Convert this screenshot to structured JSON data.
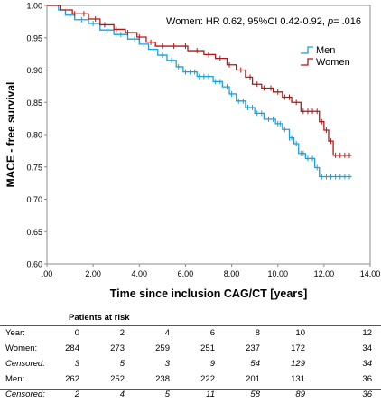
{
  "chart_data": {
    "type": "line",
    "title": "",
    "annotation_parts": [
      "Women: HR 0.62, 95%CI 0.42-0.92, ",
      "p",
      "= .016"
    ],
    "xlabel": "Time since inclusion CAG/CT [years]",
    "ylabel": "MACE - free  survival",
    "xlim": [
      0,
      14
    ],
    "ylim": [
      0.6,
      1.0
    ],
    "x_ticks": [
      ".00",
      "2.00",
      "4.00",
      "6.00",
      "8.00",
      "10.00",
      "12.00",
      "14.00"
    ],
    "y_ticks": [
      "0.60",
      "0.65",
      "0.70",
      "0.75",
      "0.80",
      "0.85",
      "0.90",
      "0.95",
      "1.00"
    ],
    "legend_position": "top-right",
    "colors": {
      "men": "#1f9fd9",
      "women": "#b01818"
    },
    "series": [
      {
        "name": "Men",
        "key": "men",
        "steps": [
          [
            0,
            1.0
          ],
          [
            0.5,
            0.993
          ],
          [
            0.8,
            0.985
          ],
          [
            1.2,
            0.978
          ],
          [
            1.8,
            0.972
          ],
          [
            2.3,
            0.962
          ],
          [
            2.9,
            0.955
          ],
          [
            3.5,
            0.948
          ],
          [
            4.0,
            0.94
          ],
          [
            4.4,
            0.932
          ],
          [
            4.8,
            0.923
          ],
          [
            5.2,
            0.915
          ],
          [
            5.6,
            0.905
          ],
          [
            5.9,
            0.897
          ],
          [
            6.5,
            0.89
          ],
          [
            7.2,
            0.882
          ],
          [
            7.6,
            0.874
          ],
          [
            7.9,
            0.863
          ],
          [
            8.2,
            0.852
          ],
          [
            8.6,
            0.842
          ],
          [
            9.0,
            0.833
          ],
          [
            9.4,
            0.824
          ],
          [
            9.9,
            0.817
          ],
          [
            10.2,
            0.808
          ],
          [
            10.5,
            0.795
          ],
          [
            10.7,
            0.786
          ],
          [
            10.9,
            0.771
          ],
          [
            11.2,
            0.763
          ],
          [
            11.6,
            0.749
          ],
          [
            11.8,
            0.735
          ],
          [
            13.2,
            0.735
          ]
        ],
        "censored": [
          1.0,
          1.5,
          2.0,
          2.6,
          3.2,
          3.8,
          4.2,
          4.6,
          5.0,
          5.4,
          5.7,
          6.0,
          6.2,
          6.4,
          6.6,
          6.8,
          7.0,
          7.3,
          7.5,
          7.8,
          8.0,
          8.3,
          8.5,
          8.7,
          8.9,
          9.1,
          9.3,
          9.6,
          9.8,
          10.0,
          10.1,
          10.3,
          10.5,
          10.6,
          10.8,
          11.0,
          11.1,
          11.3,
          11.5,
          11.7,
          11.9,
          12.1,
          12.3,
          12.5,
          12.7,
          12.9,
          13.1
        ]
      },
      {
        "name": "Women",
        "key": "women",
        "steps": [
          [
            0,
            1.0
          ],
          [
            0.6,
            0.993
          ],
          [
            1.1,
            0.987
          ],
          [
            1.8,
            0.979
          ],
          [
            2.3,
            0.97
          ],
          [
            2.9,
            0.963
          ],
          [
            3.4,
            0.958
          ],
          [
            3.9,
            0.951
          ],
          [
            4.3,
            0.943
          ],
          [
            4.7,
            0.937
          ],
          [
            6.1,
            0.93
          ],
          [
            6.8,
            0.924
          ],
          [
            7.3,
            0.918
          ],
          [
            7.8,
            0.908
          ],
          [
            8.2,
            0.9
          ],
          [
            8.6,
            0.889
          ],
          [
            8.9,
            0.878
          ],
          [
            9.3,
            0.872
          ],
          [
            9.8,
            0.866
          ],
          [
            10.2,
            0.858
          ],
          [
            10.6,
            0.85
          ],
          [
            11.0,
            0.836
          ],
          [
            11.8,
            0.82
          ],
          [
            12.0,
            0.807
          ],
          [
            12.2,
            0.79
          ],
          [
            12.4,
            0.768
          ],
          [
            13.2,
            0.768
          ]
        ],
        "censored": [
          1.2,
          1.6,
          2.1,
          2.5,
          3.0,
          3.5,
          4.0,
          4.5,
          5.0,
          5.5,
          6.0,
          6.5,
          7.0,
          7.5,
          7.9,
          8.4,
          8.8,
          9.1,
          9.4,
          9.7,
          10.0,
          10.3,
          10.5,
          10.8,
          11.1,
          11.3,
          11.5,
          11.7,
          11.9,
          12.1,
          12.3,
          12.5,
          12.7,
          12.9,
          13.1
        ]
      }
    ]
  },
  "risk_table": {
    "header": "Patients at risk",
    "year_label": "Year:",
    "years": [
      "0",
      "2",
      "4",
      "6",
      "8",
      "10",
      "12"
    ],
    "rows": [
      {
        "label": "Women:",
        "italic": false,
        "values": [
          "284",
          "273",
          "259",
          "251",
          "237",
          "172",
          "34"
        ]
      },
      {
        "label": "Censored:",
        "italic": true,
        "values": [
          "3",
          "5",
          "3",
          "9",
          "54",
          "129",
          "34"
        ]
      },
      {
        "label": "Men:",
        "italic": false,
        "values": [
          "262",
          "252",
          "238",
          "222",
          "201",
          "131",
          "36"
        ]
      },
      {
        "label": "Censored:",
        "italic": true,
        "values": [
          "2",
          "4",
          "5",
          "11",
          "58",
          "89",
          "36"
        ]
      }
    ]
  }
}
